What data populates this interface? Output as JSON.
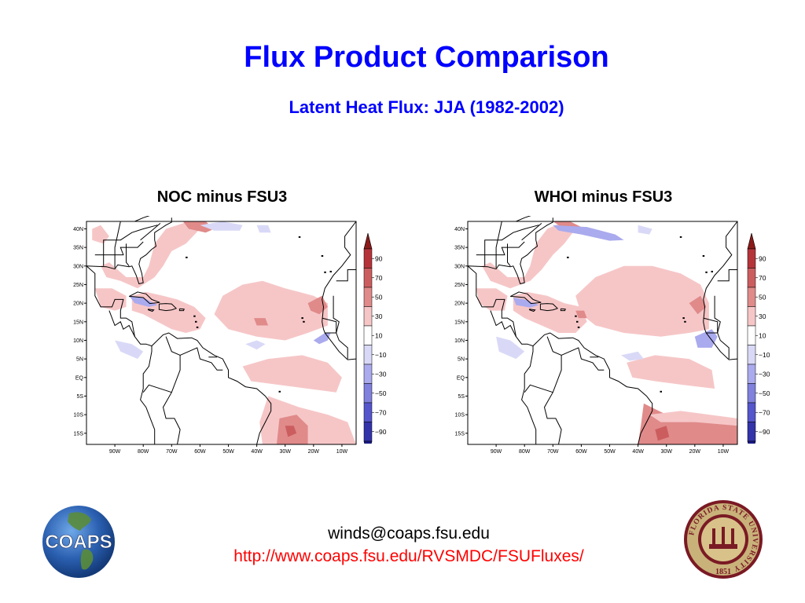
{
  "header": {
    "title": "Flux Product Comparison",
    "subtitle": "Latent Heat Flux: JJA (1982-2002)"
  },
  "maps": [
    {
      "title": "NOC minus FSU3"
    },
    {
      "title": "WHOI minus FSU3"
    }
  ],
  "axes": {
    "lat_labels": [
      "40N",
      "35N",
      "30N",
      "25N",
      "20N",
      "15N",
      "10N",
      "5N",
      "EQ",
      "5S",
      "10S",
      "15S"
    ],
    "lon_labels": [
      "90W",
      "80W",
      "70W",
      "60W",
      "50W",
      "40W",
      "30W",
      "20W",
      "10W"
    ]
  },
  "colorbar": {
    "labels": [
      "90",
      "70",
      "50",
      "30",
      "10",
      "−10",
      "−30",
      "−50",
      "−70",
      "−90"
    ],
    "colors": [
      "#b5343a",
      "#cc5d5f",
      "#e08a8a",
      "#f6c6c7",
      "#ffffff",
      "#d9d9f7",
      "#aaaaee",
      "#8080dd",
      "#5555cc",
      "#3333aa"
    ],
    "top_color": "#8b1a1a",
    "bottom_color": "#1a1a8b"
  },
  "footer": {
    "email": "winds@coaps.fsu.edu",
    "url": "http://www.coaps.fsu.edu/RVSMDC/FSUFluxes/"
  },
  "logos": {
    "left": {
      "text": "COAPS"
    },
    "right": {
      "ring_text": "FLORIDA STATE UNIVERSITY",
      "year": "1851"
    }
  }
}
